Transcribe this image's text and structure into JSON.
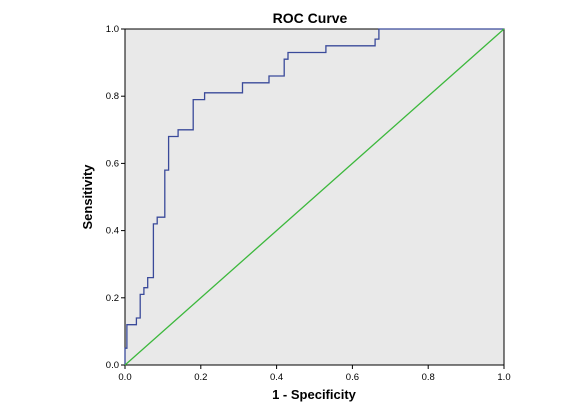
{
  "chart_data": {
    "type": "line",
    "title": "ROC Curve",
    "xlabel": "1 - Specificity",
    "ylabel": "Sensitivity",
    "xlim": [
      0.0,
      1.0
    ],
    "ylim": [
      0.0,
      1.0
    ],
    "x_ticks": [
      "0.0",
      "0.2",
      "0.4",
      "0.6",
      "0.8",
      "1.0"
    ],
    "y_ticks": [
      "0.0",
      "0.2",
      "0.4",
      "0.6",
      "0.8",
      "1.0"
    ],
    "grid": false,
    "background_color": "#e9e9e9",
    "series": [
      {
        "style": "step",
        "color": "#3a4a9a",
        "points": [
          [
            0.0,
            0.0
          ],
          [
            0.0,
            0.05
          ],
          [
            0.005,
            0.05
          ],
          [
            0.005,
            0.12
          ],
          [
            0.03,
            0.12
          ],
          [
            0.03,
            0.14
          ],
          [
            0.04,
            0.14
          ],
          [
            0.04,
            0.21
          ],
          [
            0.05,
            0.21
          ],
          [
            0.05,
            0.23
          ],
          [
            0.06,
            0.23
          ],
          [
            0.06,
            0.26
          ],
          [
            0.075,
            0.26
          ],
          [
            0.075,
            0.42
          ],
          [
            0.085,
            0.42
          ],
          [
            0.085,
            0.44
          ],
          [
            0.105,
            0.44
          ],
          [
            0.105,
            0.58
          ],
          [
            0.115,
            0.58
          ],
          [
            0.115,
            0.68
          ],
          [
            0.14,
            0.68
          ],
          [
            0.14,
            0.7
          ],
          [
            0.18,
            0.7
          ],
          [
            0.18,
            0.79
          ],
          [
            0.21,
            0.79
          ],
          [
            0.21,
            0.81
          ],
          [
            0.31,
            0.81
          ],
          [
            0.31,
            0.84
          ],
          [
            0.38,
            0.84
          ],
          [
            0.38,
            0.86
          ],
          [
            0.42,
            0.86
          ],
          [
            0.42,
            0.91
          ],
          [
            0.43,
            0.91
          ],
          [
            0.43,
            0.93
          ],
          [
            0.53,
            0.93
          ],
          [
            0.53,
            0.95
          ],
          [
            0.66,
            0.95
          ],
          [
            0.66,
            0.97
          ],
          [
            0.67,
            0.97
          ],
          [
            0.67,
            1.0
          ],
          [
            1.0,
            1.0
          ]
        ]
      },
      {
        "style": "line",
        "color": "#3cb83c",
        "points": [
          [
            0.0,
            0.0
          ],
          [
            1.0,
            1.0
          ]
        ]
      }
    ]
  }
}
